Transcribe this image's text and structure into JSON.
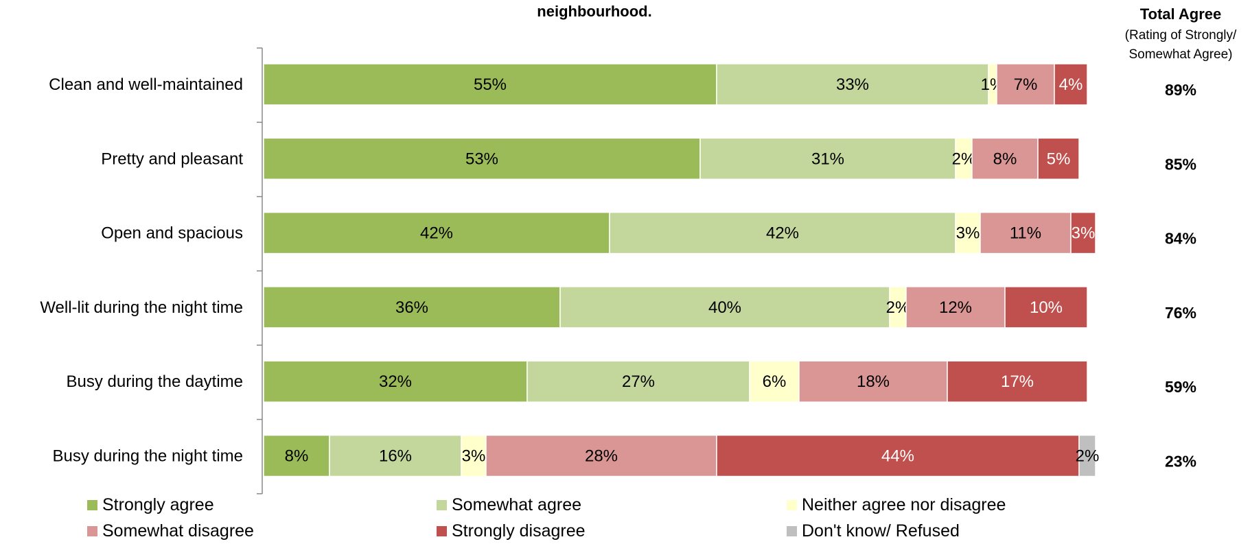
{
  "chart_data": {
    "type": "bar",
    "orientation": "horizontal",
    "stacked": true,
    "title": "neighbourhood.",
    "categories": [
      "Clean and well-maintained",
      "Pretty and pleasant",
      "Open and spacious",
      "Well-lit during the night time",
      "Busy during the daytime",
      "Busy during the night time"
    ],
    "series": [
      {
        "name": "Strongly agree",
        "color": "#9bbb59",
        "label_color": "#000000",
        "values": [
          55,
          53,
          42,
          36,
          32,
          8
        ]
      },
      {
        "name": "Somewhat agree",
        "color": "#c3d69b",
        "label_color": "#000000",
        "values": [
          33,
          31,
          42,
          40,
          27,
          16
        ]
      },
      {
        "name": "Neither agree nor disagree",
        "color": "#ffffcc",
        "label_color": "#000000",
        "values": [
          1,
          2,
          3,
          2,
          6,
          3
        ]
      },
      {
        "name": "Somewhat disagree",
        "color": "#d99694",
        "label_color": "#000000",
        "values": [
          7,
          8,
          11,
          12,
          18,
          28
        ]
      },
      {
        "name": "Strongly disagree",
        "color": "#c0504d",
        "label_color": "#ffffff",
        "values": [
          4,
          5,
          3,
          10,
          17,
          44
        ]
      },
      {
        "name": "Don't know/ Refused",
        "color": "#bfbfbf",
        "label_color": "#000000",
        "values": [
          0,
          0,
          0,
          0,
          0,
          2
        ]
      }
    ],
    "segment_labels": [
      [
        "55%",
        "33%",
        "1%",
        "7%",
        "4%",
        ""
      ],
      [
        "53%",
        "31%",
        "2%",
        "8%",
        "5%",
        ""
      ],
      [
        "42%",
        "42%",
        "3%",
        "11%",
        "3%",
        ""
      ],
      [
        "36%",
        "40%",
        "2%",
        "12%",
        "10%",
        ""
      ],
      [
        "32%",
        "27%",
        "6%",
        "18%",
        "17%",
        ""
      ],
      [
        "8%",
        "16%",
        "3%",
        "28%",
        "44%",
        "2%"
      ]
    ],
    "total_agree": {
      "title": "Total Agree",
      "subtitle_lines": [
        "(Rating of Strongly/",
        "Somewhat Agree)"
      ],
      "values": [
        "89%",
        "85%",
        "84%",
        "76%",
        "59%",
        "23%"
      ]
    },
    "xlim": [
      0,
      100
    ],
    "legend_position": "bottom"
  }
}
